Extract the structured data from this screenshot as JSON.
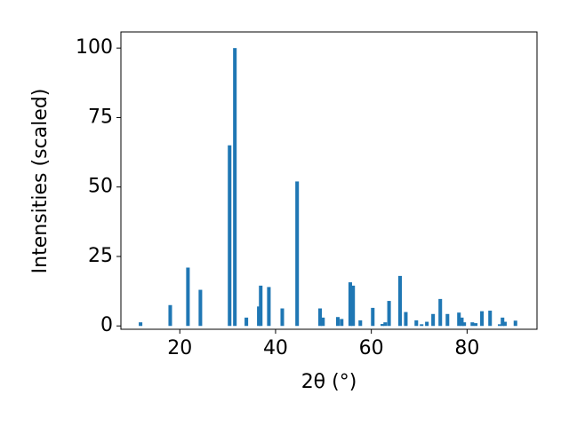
{
  "chart_data": {
    "type": "bar",
    "x_label": "2θ (°)",
    "y_label": "Intensities (scaled)",
    "x": [
      11.8,
      18.0,
      21.7,
      24.3,
      30.4,
      31.5,
      33.9,
      36.5,
      36.9,
      38.6,
      41.4,
      44.5,
      49.3,
      49.9,
      53.0,
      53.8,
      55.6,
      56.2,
      57.7,
      60.3,
      62.3,
      62.9,
      63.7,
      66.0,
      67.2,
      69.4,
      70.5,
      71.6,
      72.9,
      74.4,
      75.9,
      78.3,
      78.9,
      79.4,
      81.1,
      81.8,
      83.1,
      84.8,
      86.8,
      87.4,
      87.9,
      90.1
    ],
    "values": [
      1.3,
      7.5,
      21,
      13,
      65,
      100,
      3,
      7,
      14.5,
      14,
      6.3,
      52,
      6.3,
      3,
      3.2,
      2.5,
      15.7,
      14.5,
      2,
      6.5,
      0.7,
      1.3,
      9,
      18,
      5,
      2,
      0.6,
      1.5,
      4.3,
      9.7,
      4.3,
      4.8,
      3,
      1.3,
      1.3,
      1,
      5.3,
      5.5,
      0.6,
      3,
      1.5,
      1.9
    ],
    "color": "#1f77b4",
    "xlim": [
      7.7,
      94.6
    ],
    "xticks": [
      20,
      40,
      60,
      80
    ],
    "ylim": [
      -1.2,
      105.8
    ],
    "yticks": [
      0,
      25,
      50,
      75,
      100
    ],
    "grid": false
  }
}
